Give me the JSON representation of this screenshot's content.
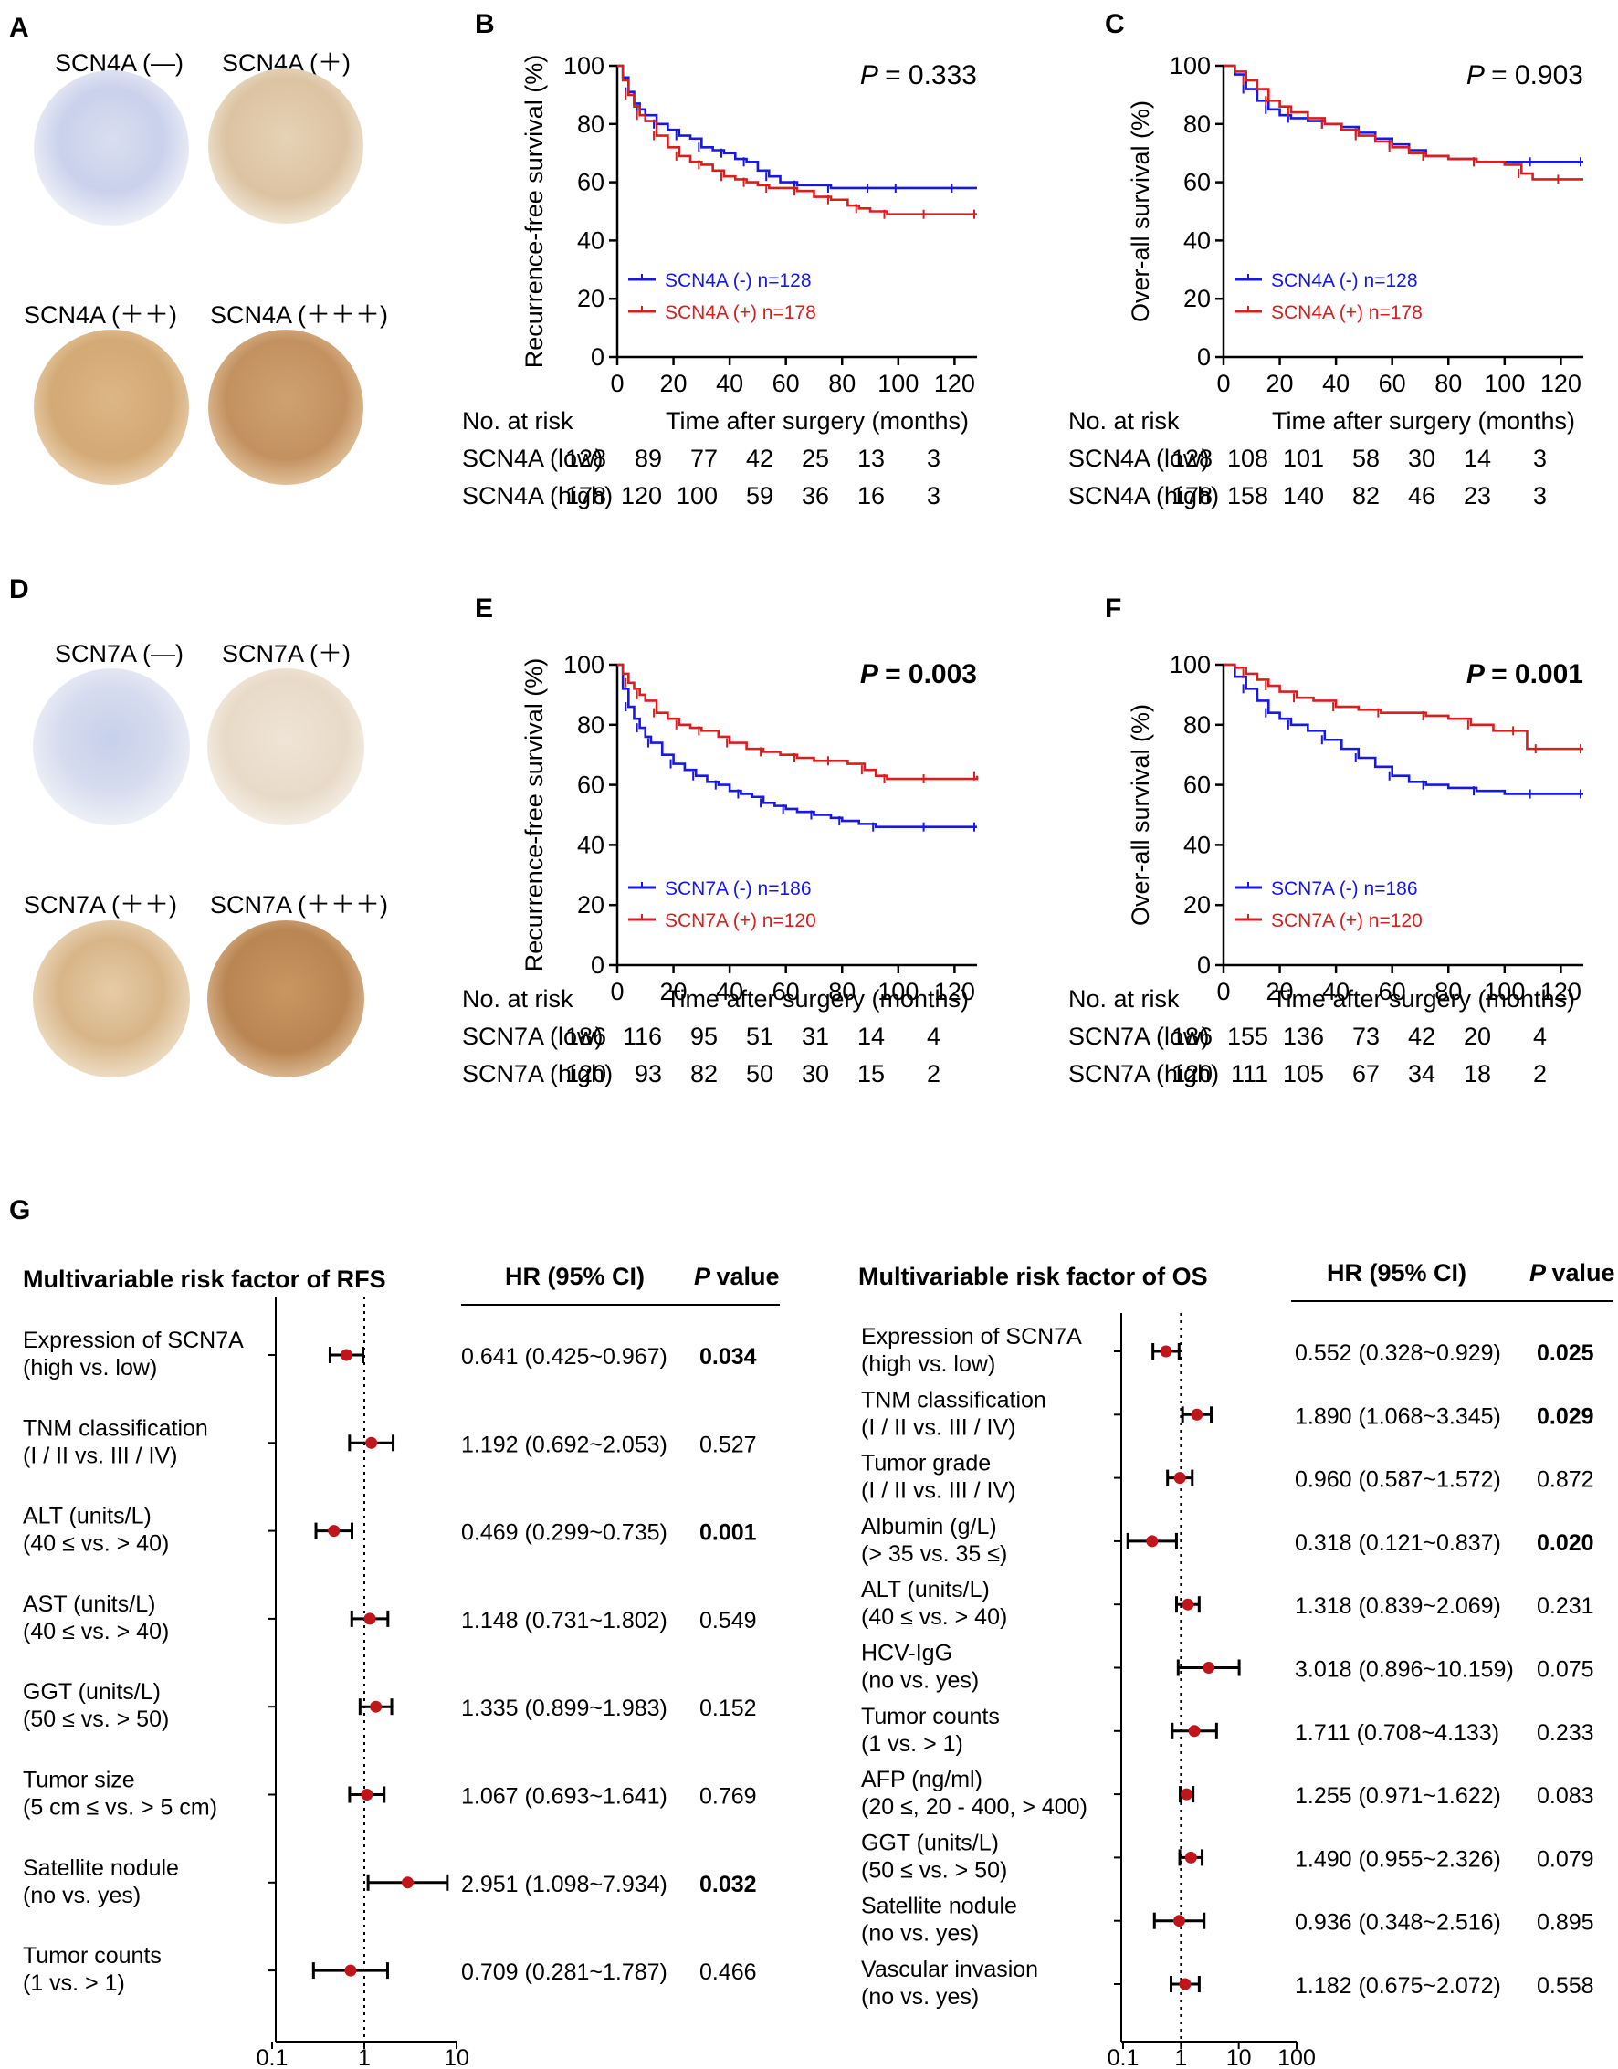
{
  "panels": {
    "A": {
      "letter": "A",
      "stains": [
        "SCN4A (—)",
        "SCN4A (＋)",
        "SCN4A (＋＋)",
        "SCN4A (＋＋＋)"
      ]
    },
    "D": {
      "letter": "D",
      "stains": [
        "SCN7A (—)",
        "SCN7A (＋)",
        "SCN7A (＋＋)",
        "SCN7A (＋＋＋)"
      ]
    },
    "G": {
      "letter": "G"
    }
  },
  "colors": {
    "blue": "#1717e6",
    "red": "#d81e1e",
    "dot": "#c0151b"
  },
  "chart_data": [
    {
      "id": "B",
      "letter": "B",
      "type": "line",
      "ylabel": "Recurrence-free survival (%)",
      "xlabel": "Time after surgery (months)",
      "xticks": [
        "0",
        "20",
        "40",
        "60",
        "80",
        "100",
        "120"
      ],
      "yticks": [
        "0",
        "20",
        "40",
        "60",
        "80",
        "100"
      ],
      "xlim": [
        0,
        128
      ],
      "ylim": [
        0,
        100
      ],
      "p_label": "P",
      "p_value": "= 0.333",
      "p_bold": false,
      "series": [
        {
          "name": "SCN4A  (-) n=128",
          "color": "blue",
          "x": [
            0,
            2,
            4,
            6,
            8,
            10,
            14,
            18,
            22,
            26,
            30,
            34,
            38,
            42,
            46,
            50,
            54,
            58,
            64,
            70,
            76,
            82,
            90,
            96,
            100,
            110,
            120,
            128
          ],
          "y": [
            100,
            96,
            91,
            87,
            85,
            83,
            80,
            78,
            76,
            75,
            72,
            71,
            70,
            68,
            67,
            64,
            62,
            60,
            59,
            59,
            58,
            58,
            58,
            58,
            58,
            58,
            58,
            58
          ]
        },
        {
          "name": "SCN4A (+) n=178",
          "color": "red",
          "x": [
            0,
            2,
            4,
            6,
            8,
            10,
            14,
            18,
            22,
            26,
            30,
            34,
            38,
            42,
            46,
            50,
            54,
            58,
            64,
            70,
            76,
            82,
            86,
            90,
            96,
            100,
            110,
            120,
            128
          ],
          "y": [
            100,
            95,
            90,
            86,
            83,
            81,
            76,
            72,
            69,
            67,
            66,
            64,
            62,
            61,
            60,
            59,
            58,
            58,
            57,
            55,
            54,
            52,
            51,
            50,
            49,
            49,
            49,
            49,
            49
          ]
        }
      ],
      "risk": {
        "header": "No. at risk",
        "rows": [
          {
            "label": "SCN4A (low)",
            "values": [
              "128",
              "89",
              "77",
              "42",
              "25",
              "13",
              "3"
            ]
          },
          {
            "label": "SCN4A (high)",
            "values": [
              "178",
              "120",
              "100",
              "59",
              "36",
              "16",
              "3"
            ]
          }
        ]
      }
    },
    {
      "id": "C",
      "letter": "C",
      "type": "line",
      "ylabel": "Over-all survival (%)",
      "xlabel": "Time after surgery (months)",
      "xticks": [
        "0",
        "20",
        "40",
        "60",
        "80",
        "100",
        "120"
      ],
      "yticks": [
        "0",
        "20",
        "40",
        "60",
        "80",
        "100"
      ],
      "xlim": [
        0,
        128
      ],
      "ylim": [
        0,
        100
      ],
      "p_label": "P",
      "p_value": "= 0.903",
      "p_bold": false,
      "series": [
        {
          "name": "SCN4A  (-) n=128",
          "color": "blue",
          "x": [
            0,
            4,
            8,
            12,
            16,
            20,
            24,
            30,
            36,
            42,
            48,
            54,
            60,
            66,
            72,
            80,
            90,
            100,
            110,
            120,
            128
          ],
          "y": [
            100,
            97,
            92,
            88,
            85,
            83,
            82,
            81,
            80,
            79,
            77,
            75,
            73,
            71,
            69,
            68,
            67,
            67,
            67,
            67,
            67
          ]
        },
        {
          "name": "SCN4A (+) n=178",
          "color": "red",
          "x": [
            0,
            4,
            8,
            12,
            16,
            20,
            24,
            30,
            36,
            42,
            48,
            54,
            60,
            66,
            72,
            80,
            90,
            100,
            106,
            110,
            120,
            128
          ],
          "y": [
            100,
            98,
            95,
            92,
            88,
            86,
            84,
            82,
            80,
            78,
            76,
            74,
            72,
            70,
            69,
            68,
            67,
            66,
            63,
            61,
            61,
            61
          ]
        }
      ],
      "risk": {
        "header": "No. at risk",
        "rows": [
          {
            "label": "SCN4A (low)",
            "values": [
              "128",
              "108",
              "101",
              "58",
              "30",
              "14",
              "3"
            ]
          },
          {
            "label": "SCN4A (high)",
            "values": [
              "178",
              "158",
              "140",
              "82",
              "46",
              "23",
              "3"
            ]
          }
        ]
      }
    },
    {
      "id": "E",
      "letter": "E",
      "type": "line",
      "ylabel": "Recurrence-free survival (%)",
      "xlabel": "Time after surgery (months)",
      "xticks": [
        "0",
        "20",
        "40",
        "60",
        "80",
        "100",
        "120"
      ],
      "yticks": [
        "0",
        "20",
        "40",
        "60",
        "80",
        "100"
      ],
      "xlim": [
        0,
        128
      ],
      "ylim": [
        0,
        100
      ],
      "p_label": "P",
      "p_value": "= 0.003",
      "p_bold": true,
      "series": [
        {
          "name": "SCN7A  (-) n=186",
          "color": "blue",
          "x": [
            0,
            2,
            4,
            6,
            8,
            10,
            12,
            16,
            20,
            24,
            28,
            32,
            36,
            40,
            44,
            48,
            52,
            56,
            60,
            64,
            70,
            76,
            80,
            86,
            92,
            100,
            110,
            120,
            128
          ],
          "y": [
            100,
            92,
            86,
            82,
            79,
            76,
            74,
            70,
            67,
            65,
            63,
            61,
            60,
            58,
            57,
            56,
            54,
            53,
            52,
            51,
            50,
            49,
            48,
            47,
            46,
            46,
            46,
            46,
            46
          ]
        },
        {
          "name": "SCN7A (+) n=120",
          "color": "red",
          "x": [
            0,
            2,
            4,
            6,
            8,
            10,
            14,
            18,
            22,
            26,
            30,
            36,
            40,
            46,
            52,
            58,
            64,
            70,
            76,
            82,
            88,
            92,
            96,
            100,
            110,
            120,
            128
          ],
          "y": [
            100,
            97,
            94,
            92,
            90,
            88,
            84,
            82,
            80,
            79,
            78,
            76,
            74,
            72,
            71,
            70,
            69,
            68,
            68,
            67,
            65,
            63,
            62,
            62,
            62,
            62,
            63
          ]
        }
      ],
      "risk": {
        "header": "No. at risk",
        "rows": [
          {
            "label": "SCN7A (low)",
            "values": [
              "186",
              "116",
              "95",
              "51",
              "31",
              "14",
              "4"
            ]
          },
          {
            "label": "SCN7A (high)",
            "values": [
              "120",
              "93",
              "82",
              "50",
              "30",
              "15",
              "2"
            ]
          }
        ]
      }
    },
    {
      "id": "F",
      "letter": "F",
      "type": "line",
      "ylabel": "Over-all survival (%)",
      "xlabel": "Time after surgery (months)",
      "xticks": [
        "0",
        "20",
        "40",
        "60",
        "80",
        "100",
        "120"
      ],
      "yticks": [
        "0",
        "20",
        "40",
        "60",
        "80",
        "100"
      ],
      "xlim": [
        0,
        128
      ],
      "ylim": [
        0,
        100
      ],
      "p_label": "P",
      "p_value": "= 0.001",
      "p_bold": true,
      "series": [
        {
          "name": "SCN7A  (-) n=186",
          "color": "blue",
          "x": [
            0,
            4,
            8,
            12,
            16,
            20,
            24,
            30,
            36,
            42,
            48,
            54,
            60,
            66,
            72,
            80,
            90,
            100,
            110,
            120,
            128
          ],
          "y": [
            100,
            96,
            92,
            88,
            84,
            82,
            80,
            78,
            75,
            72,
            69,
            66,
            63,
            61,
            60,
            59,
            58,
            57,
            57,
            57,
            57
          ]
        },
        {
          "name": "SCN7A (+) n=120",
          "color": "red",
          "x": [
            0,
            4,
            8,
            12,
            16,
            20,
            26,
            32,
            40,
            48,
            56,
            64,
            72,
            80,
            88,
            96,
            104,
            108,
            112,
            120,
            128
          ],
          "y": [
            100,
            99,
            97,
            95,
            93,
            91,
            89,
            88,
            86,
            85,
            84,
            84,
            83,
            82,
            80,
            78,
            78,
            72,
            72,
            72,
            72
          ]
        }
      ],
      "risk": {
        "header": "No. at risk",
        "rows": [
          {
            "label": "SCN7A (low)",
            "values": [
              "186",
              "155",
              "136",
              "73",
              "42",
              "20",
              "4"
            ]
          },
          {
            "label": "SCN7A (high)",
            "values": [
              "120",
              "111",
              "105",
              "67",
              "34",
              "18",
              "2"
            ]
          }
        ]
      }
    },
    {
      "id": "G-left",
      "type": "forest",
      "title": "Multivariable risk factor of RFS",
      "hr_header": "HR (95% CI)",
      "p_header": "value",
      "p_header_italic": "P",
      "xticks": [
        "0.1",
        "1",
        "10"
      ],
      "xlim": [
        0.1,
        10
      ],
      "rows": [
        {
          "label": [
            "Expression of SCN7A",
            "(high vs. low)"
          ],
          "hr": 0.641,
          "lo": 0.425,
          "hi": 0.967,
          "hr_text": "0.641 (0.425~0.967)",
          "p": "0.034",
          "bold": true
        },
        {
          "label": [
            "TNM classification",
            "(I / II vs. III / IV)"
          ],
          "hr": 1.192,
          "lo": 0.692,
          "hi": 2.053,
          "hr_text": "1.192 (0.692~2.053)",
          "p": "0.527",
          "bold": false
        },
        {
          "label": [
            "ALT (units/L)",
            "(40 ≤ vs. > 40)"
          ],
          "hr": 0.469,
          "lo": 0.299,
          "hi": 0.735,
          "hr_text": "0.469 (0.299~0.735)",
          "p": "0.001",
          "bold": true
        },
        {
          "label": [
            "AST  (units/L)",
            "(40 ≤ vs. > 40)"
          ],
          "hr": 1.148,
          "lo": 0.731,
          "hi": 1.802,
          "hr_text": "1.148 (0.731~1.802)",
          "p": "0.549",
          "bold": false
        },
        {
          "label": [
            "GGT  (units/L)",
            "(50 ≤ vs. > 50)"
          ],
          "hr": 1.335,
          "lo": 0.899,
          "hi": 1.983,
          "hr_text": "1.335 (0.899~1.983)",
          "p": "0.152",
          "bold": false
        },
        {
          "label": [
            "Tumor size",
            "(5 cm ≤ vs. > 5 cm)"
          ],
          "hr": 1.067,
          "lo": 0.693,
          "hi": 1.641,
          "hr_text": "1.067 (0.693~1.641)",
          "p": "0.769",
          "bold": false
        },
        {
          "label": [
            "Satellite nodule",
            "(no vs. yes)"
          ],
          "hr": 2.951,
          "lo": 1.098,
          "hi": 7.934,
          "hr_text": "2.951 (1.098~7.934)",
          "p": "0.032",
          "bold": true
        },
        {
          "label": [
            "Tumor counts",
            "(1 vs. > 1)"
          ],
          "hr": 0.709,
          "lo": 0.281,
          "hi": 1.787,
          "hr_text": "0.709 (0.281~1.787)",
          "p": "0.466",
          "bold": false
        }
      ]
    },
    {
      "id": "G-right",
      "type": "forest",
      "title": "Multivariable risk factor of OS",
      "hr_header": "HR (95% CI)",
      "p_header": "value",
      "p_header_italic": "P",
      "xticks": [
        "0.1",
        "1",
        "10",
        "100"
      ],
      "xlim": [
        0.1,
        100
      ],
      "rows": [
        {
          "label": [
            "Expression of SCN7A",
            "(high vs. low)"
          ],
          "hr": 0.552,
          "lo": 0.328,
          "hi": 0.929,
          "hr_text": "0.552 (0.328~0.929)",
          "p": "0.025",
          "bold": true
        },
        {
          "label": [
            "TNM classification",
            "(I / II vs. III / IV)"
          ],
          "hr": 1.89,
          "lo": 1.068,
          "hi": 3.345,
          "hr_text": "1.890 (1.068~3.345)",
          "p": "0.029",
          "bold": true
        },
        {
          "label": [
            "Tumor grade",
            "(I / II vs. III / IV)"
          ],
          "hr": 0.96,
          "lo": 0.587,
          "hi": 1.572,
          "hr_text": "0.960 (0.587~1.572)",
          "p": "0.872",
          "bold": false
        },
        {
          "label": [
            "Albumin (g/L)",
            "(> 35 vs. 35 ≤)"
          ],
          "hr": 0.318,
          "lo": 0.121,
          "hi": 0.837,
          "hr_text": "0.318 (0.121~0.837)",
          "p": "0.020",
          "bold": true
        },
        {
          "label": [
            "ALT (units/L)",
            "(40 ≤ vs. > 40)"
          ],
          "hr": 1.318,
          "lo": 0.839,
          "hi": 2.069,
          "hr_text": "1.318 (0.839~2.069)",
          "p": "0.231",
          "bold": false
        },
        {
          "label": [
            "HCV-IgG",
            "(no vs. yes)"
          ],
          "hr": 3.018,
          "lo": 0.896,
          "hi": 10.159,
          "hr_text": "3.018 (0.896~10.159)",
          "p": "0.075",
          "bold": false
        },
        {
          "label": [
            "Tumor counts",
            "(1 vs. > 1)"
          ],
          "hr": 1.711,
          "lo": 0.708,
          "hi": 4.133,
          "hr_text": "1.711 (0.708~4.133)",
          "p": "0.233",
          "bold": false
        },
        {
          "label": [
            "AFP  (ng/ml)",
            "(20 ≤, 20 - 400, > 400)"
          ],
          "hr": 1.255,
          "lo": 0.971,
          "hi": 1.622,
          "hr_text": "1.255 (0.971~1.622)",
          "p": "0.083",
          "bold": false
        },
        {
          "label": [
            "GGT  (units/L)",
            "(50 ≤ vs. > 50)"
          ],
          "hr": 1.49,
          "lo": 0.955,
          "hi": 2.326,
          "hr_text": "1.490 (0.955~2.326)",
          "p": "0.079",
          "bold": false
        },
        {
          "label": [
            "Satellite nodule",
            "(no vs. yes)"
          ],
          "hr": 0.936,
          "lo": 0.348,
          "hi": 2.516,
          "hr_text": "0.936 (0.348~2.516)",
          "p": "0.895",
          "bold": false
        },
        {
          "label": [
            "Vascular invasion",
            "(no vs. yes)"
          ],
          "hr": 1.182,
          "lo": 0.675,
          "hi": 2.072,
          "hr_text": "1.182 (0.675~2.072)",
          "p": "0.558",
          "bold": false
        }
      ]
    }
  ]
}
